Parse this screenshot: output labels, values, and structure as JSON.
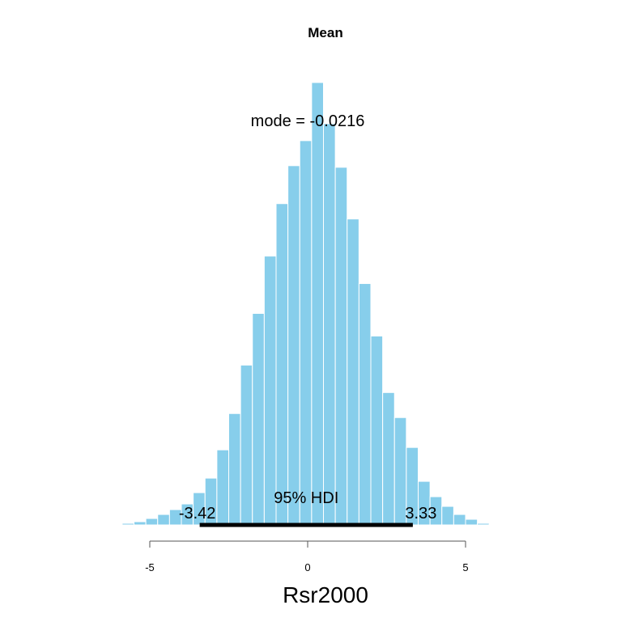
{
  "chart_data": {
    "type": "bar",
    "title": "Mean",
    "xlabel": "Rsr2000",
    "ylabel": "",
    "xlim": [
      -7.4,
      7.0
    ],
    "x_ticks": [
      "-5",
      "0",
      "5"
    ],
    "x_tick_values": [
      -5,
      0,
      5
    ],
    "bar_color": "#87CEEB",
    "bar_edge_color": "#ffffff",
    "bin_width": 0.375,
    "bins_start": -7.0,
    "counts": [
      0.2,
      0.5,
      1,
      2,
      4,
      8,
      13,
      19,
      26,
      40,
      58,
      93,
      138,
      198,
      262,
      333,
      398,
      445,
      476,
      548,
      497,
      443,
      379,
      299,
      234,
      164,
      133,
      96,
      54,
      35,
      23,
      13,
      7,
      2,
      0.5,
      0.2
    ],
    "ylim": [
      0,
      560
    ],
    "mode_label": "mode = -0.0216",
    "hdi": {
      "label": "95% HDI",
      "low": -3.42,
      "high": 3.33,
      "low_label": "-3.42",
      "high_label": "3.33"
    },
    "grid": false,
    "legend": "none"
  }
}
